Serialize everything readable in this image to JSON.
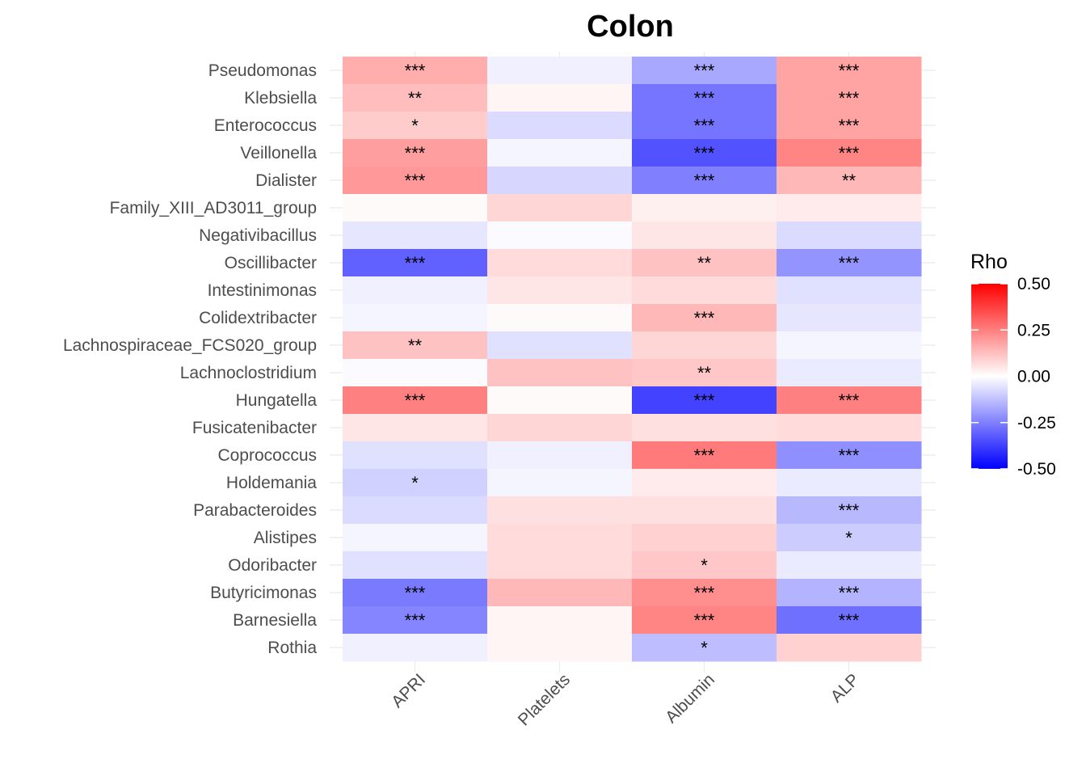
{
  "chart_data": {
    "type": "heatmap",
    "title": "Colon",
    "xlabel": "",
    "ylabel": "",
    "columns": [
      "APRI",
      "Platelets",
      "Albumin",
      "ALP"
    ],
    "rows": [
      "Pseudomonas",
      "Klebsiella",
      "Enterococcus",
      "Veillonella",
      "Dialister",
      "Family_XIII_AD3011_group",
      "Negativibacillus",
      "Oscillibacter",
      "Intestinimonas",
      "Colidextribacter",
      "Lachnospiraceae_FCS020_group",
      "Lachnoclostridium",
      "Hungatella",
      "Fusicatenibacter",
      "Coprococcus",
      "Holdemania",
      "Parabacteroides",
      "Alistipes",
      "Odoribacter",
      "Butyricimonas",
      "Barnesiella",
      "Rothia"
    ],
    "values": [
      [
        0.16,
        -0.03,
        -0.17,
        0.18
      ],
      [
        0.13,
        0.02,
        -0.27,
        0.18
      ],
      [
        0.1,
        -0.07,
        -0.27,
        0.18
      ],
      [
        0.19,
        -0.02,
        -0.34,
        0.24
      ],
      [
        0.2,
        -0.08,
        -0.25,
        0.14
      ],
      [
        0.01,
        0.08,
        0.03,
        0.04
      ],
      [
        -0.05,
        -0.01,
        0.05,
        -0.07
      ],
      [
        -0.31,
        0.07,
        0.12,
        -0.21
      ],
      [
        -0.03,
        0.05,
        0.07,
        -0.06
      ],
      [
        -0.02,
        0.01,
        0.14,
        -0.05
      ],
      [
        0.12,
        -0.06,
        0.08,
        -0.02
      ],
      [
        -0.01,
        0.12,
        0.11,
        -0.04
      ],
      [
        0.25,
        0.01,
        -0.37,
        0.25
      ],
      [
        0.05,
        0.08,
        0.06,
        0.07
      ],
      [
        -0.06,
        -0.03,
        0.26,
        -0.22
      ],
      [
        -0.09,
        -0.02,
        0.04,
        -0.04
      ],
      [
        -0.07,
        0.06,
        0.06,
        -0.14
      ],
      [
        -0.02,
        0.07,
        0.09,
        -0.1
      ],
      [
        -0.06,
        0.07,
        0.11,
        -0.04
      ],
      [
        -0.26,
        0.14,
        0.22,
        -0.15
      ],
      [
        -0.24,
        0.02,
        0.24,
        -0.28
      ],
      [
        -0.03,
        0.02,
        -0.13,
        0.09
      ]
    ],
    "significance": [
      [
        "***",
        "",
        "***",
        "***"
      ],
      [
        "**",
        "",
        "***",
        "***"
      ],
      [
        "*",
        "",
        "***",
        "***"
      ],
      [
        "***",
        "",
        "***",
        "***"
      ],
      [
        "***",
        "",
        "***",
        "**"
      ],
      [
        "",
        "",
        "",
        ""
      ],
      [
        "",
        "",
        "",
        ""
      ],
      [
        "***",
        "",
        "**",
        "***"
      ],
      [
        "",
        "",
        "",
        ""
      ],
      [
        "",
        "",
        "***",
        ""
      ],
      [
        "**",
        "",
        "",
        ""
      ],
      [
        "",
        "",
        "**",
        ""
      ],
      [
        "***",
        "",
        "***",
        "***"
      ],
      [
        "",
        "",
        "",
        ""
      ],
      [
        "",
        "",
        "***",
        "***"
      ],
      [
        "*",
        "",
        "",
        ""
      ],
      [
        "",
        "",
        "",
        "***"
      ],
      [
        "",
        "",
        "",
        "*"
      ],
      [
        "",
        "",
        "*",
        ""
      ],
      [
        "***",
        "",
        "***",
        "***"
      ],
      [
        "***",
        "",
        "***",
        "***"
      ],
      [
        "",
        "",
        "*",
        ""
      ]
    ],
    "legend": {
      "title": "Rho",
      "range": [
        -0.5,
        0.5
      ],
      "ticks": [
        "0.50",
        "0.25",
        "0.00",
        "-0.25",
        "-0.50"
      ],
      "tick_values": [
        0.5,
        0.25,
        0,
        -0.25,
        -0.5
      ],
      "low_color": "#0000ff",
      "mid_color": "#ffffff",
      "high_color": "#ff0000",
      "placement": "right"
    },
    "grid": true
  }
}
